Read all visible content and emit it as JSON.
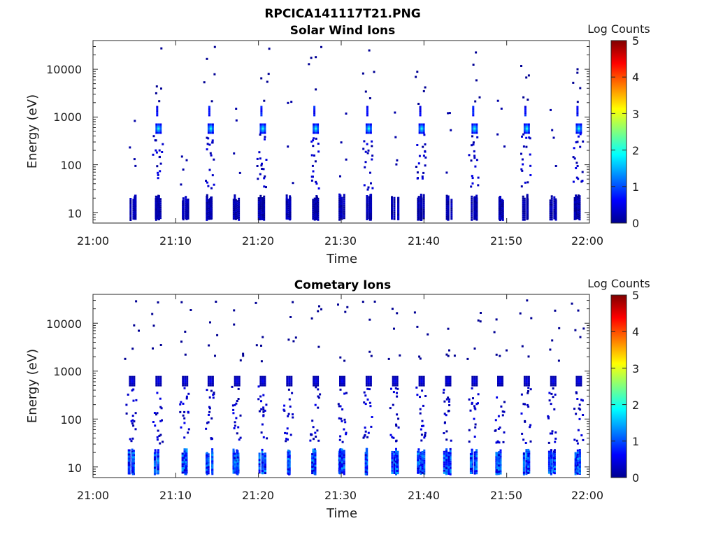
{
  "figure_title": "RPCICA141117T21.PNG",
  "chart_data": [
    {
      "type": "heatmap",
      "title": "Solar Wind Ions",
      "xlabel": "Time",
      "ylabel": "Energy (eV)",
      "x_ticks": [
        "21:00",
        "21:10",
        "21:20",
        "21:30",
        "21:40",
        "21:50",
        "22:00"
      ],
      "x_range": [
        "21:00",
        "22:00"
      ],
      "y_scale": "log",
      "y_range": [
        6,
        40000
      ],
      "y_ticks": [
        "10",
        "100",
        "1000",
        "10000"
      ],
      "colorbar": {
        "label": "Log Counts",
        "range": [
          0,
          5
        ],
        "ticks": [
          "0",
          "1",
          "2",
          "3",
          "4",
          "5"
        ]
      },
      "sweep_times_min": [
        7.8,
        14.1,
        20.4,
        26.8,
        33.2,
        39.6,
        46.0,
        52.3,
        58.6
      ],
      "sweep_gap_times_min": [
        4.6,
        11.0,
        17.3,
        23.6,
        30.0,
        36.4,
        42.8,
        49.1,
        55.5
      ],
      "peak_energy_eV": 600,
      "secondary_energy_eV": 1400,
      "peak_log_counts": 2.0,
      "low_energy_band_eV": [
        6,
        25
      ]
    },
    {
      "type": "heatmap",
      "title": "Cometary Ions",
      "xlabel": "Time",
      "ylabel": "Energy (eV)",
      "x_ticks": [
        "21:00",
        "21:10",
        "21:20",
        "21:30",
        "21:40",
        "21:50",
        "22:00"
      ],
      "x_range": [
        "21:00",
        "22:00"
      ],
      "y_scale": "log",
      "y_range": [
        6,
        40000
      ],
      "y_ticks": [
        "10",
        "100",
        "1000",
        "10000"
      ],
      "colorbar": {
        "label": "Log Counts",
        "range": [
          0,
          5
        ],
        "ticks": [
          "0",
          "1",
          "2",
          "3",
          "4",
          "5"
        ]
      },
      "sweep_times_min": [
        4.6,
        7.8,
        11.0,
        14.1,
        17.3,
        20.4,
        23.6,
        26.8,
        30.0,
        33.2,
        36.4,
        39.6,
        42.8,
        46.0,
        49.1,
        52.3,
        55.5,
        58.6
      ],
      "peak_energy_eV": 650,
      "low_energy_band_eV": [
        6,
        25
      ],
      "low_energy_log_counts": 1.2
    }
  ]
}
